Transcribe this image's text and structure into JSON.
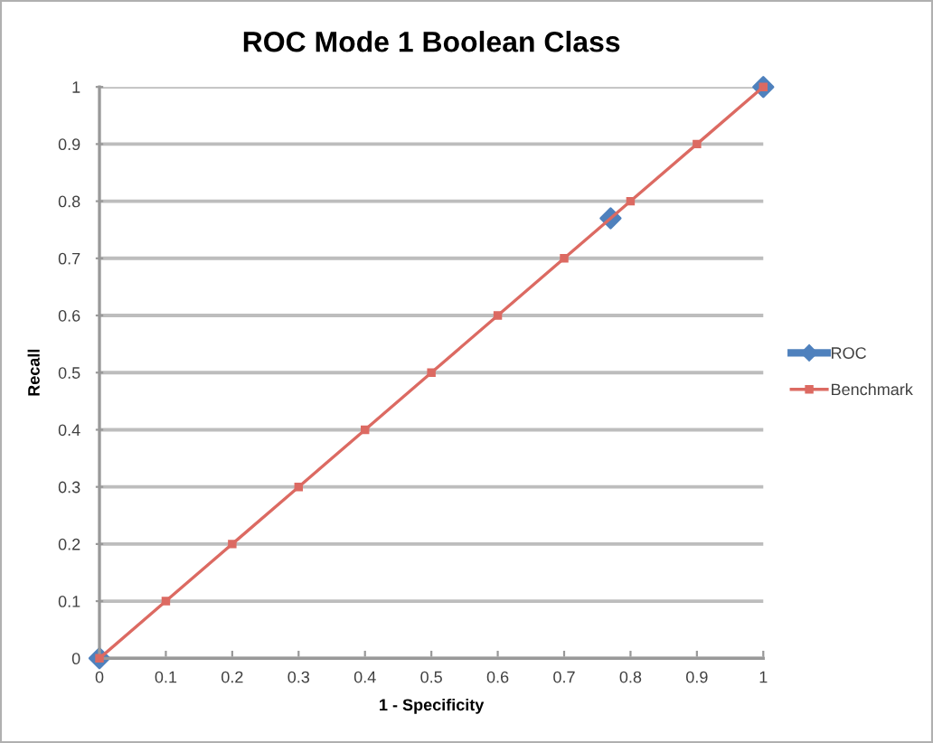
{
  "chart_data": {
    "type": "line",
    "title": "ROC Mode 1 Boolean Class",
    "xlabel": "1 - Specificity",
    "ylabel": "Recall",
    "series": [
      {
        "name": "ROC",
        "type": "scatter",
        "color": "#4f81bd",
        "marker": "diamond",
        "x": [
          0,
          0.77,
          1
        ],
        "values": [
          0,
          0.77,
          1
        ]
      },
      {
        "name": "Benchmark",
        "color": "#dc6a62",
        "marker": "square",
        "x": [
          0,
          0.1,
          0.2,
          0.3,
          0.4,
          0.5,
          0.6,
          0.7,
          0.8,
          0.9,
          1
        ],
        "values": [
          0,
          0.1,
          0.2,
          0.3,
          0.4,
          0.5,
          0.6,
          0.7,
          0.8,
          0.9,
          1
        ]
      }
    ],
    "xlim": [
      0,
      1
    ],
    "ylim": [
      0,
      1
    ],
    "xticks": [
      0,
      0.1,
      0.2,
      0.3,
      0.4,
      0.5,
      0.6,
      0.7,
      0.8,
      0.9,
      1
    ],
    "yticks": [
      0,
      0.1,
      0.2,
      0.3,
      0.4,
      0.5,
      0.6,
      0.7,
      0.8,
      0.9,
      1
    ],
    "grid": "y",
    "legend": "right",
    "line_style": "solid"
  }
}
